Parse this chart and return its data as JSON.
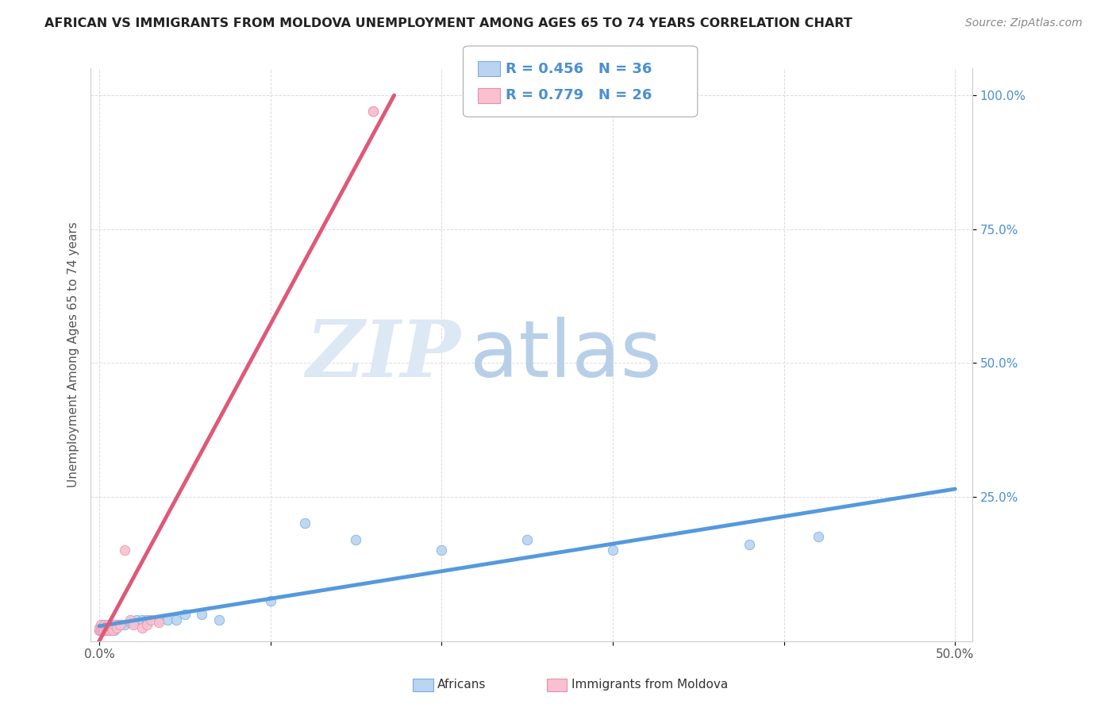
{
  "title": "AFRICAN VS IMMIGRANTS FROM MOLDOVA UNEMPLOYMENT AMONG AGES 65 TO 74 YEARS CORRELATION CHART",
  "source": "Source: ZipAtlas.com",
  "ylabel": "Unemployment Among Ages 65 to 74 years",
  "xlim": [
    -0.005,
    0.51
  ],
  "ylim": [
    -0.02,
    1.05
  ],
  "xticks": [
    0.0,
    0.1,
    0.2,
    0.3,
    0.4,
    0.5
  ],
  "yticks": [
    0.25,
    0.5,
    0.75,
    1.0
  ],
  "xtick_labels": [
    "0.0%",
    "",
    "",
    "",
    "",
    "50.0%"
  ],
  "ytick_labels": [
    "25.0%",
    "50.0%",
    "75.0%",
    "100.0%"
  ],
  "africans_x": [
    0.0,
    0.001,
    0.001,
    0.002,
    0.002,
    0.003,
    0.003,
    0.004,
    0.005,
    0.005,
    0.006,
    0.007,
    0.008,
    0.009,
    0.01,
    0.012,
    0.015,
    0.018,
    0.02,
    0.022,
    0.025,
    0.028,
    0.035,
    0.04,
    0.045,
    0.05,
    0.06,
    0.07,
    0.1,
    0.12,
    0.15,
    0.2,
    0.25,
    0.3,
    0.38,
    0.42
  ],
  "africans_y": [
    0.0,
    0.0,
    0.005,
    0.0,
    0.01,
    0.0,
    0.005,
    0.0,
    0.008,
    0.0,
    0.01,
    0.0,
    0.005,
    0.0,
    0.01,
    0.01,
    0.01,
    0.015,
    0.015,
    0.02,
    0.02,
    0.02,
    0.02,
    0.02,
    0.02,
    0.03,
    0.03,
    0.02,
    0.055,
    0.2,
    0.17,
    0.15,
    0.17,
    0.15,
    0.16,
    0.175
  ],
  "moldova_x": [
    0.0,
    0.0,
    0.001,
    0.001,
    0.002,
    0.002,
    0.003,
    0.003,
    0.004,
    0.005,
    0.005,
    0.006,
    0.007,
    0.008,
    0.009,
    0.01,
    0.012,
    0.015,
    0.018,
    0.02,
    0.025,
    0.028,
    0.03,
    0.035,
    0.16,
    0.16
  ],
  "moldova_y": [
    0.0,
    0.005,
    0.0,
    0.01,
    0.0,
    0.005,
    0.0,
    0.01,
    0.0,
    0.005,
    0.01,
    0.0,
    0.005,
    0.0,
    0.01,
    0.005,
    0.01,
    0.15,
    0.02,
    0.01,
    0.005,
    0.01,
    0.02,
    0.015,
    0.97,
    0.97
  ],
  "africans_color": "#b8d4f0",
  "africans_edge_color": "#7aaae0",
  "moldova_color": "#f8c0d0",
  "moldova_edge_color": "#e890a8",
  "line_african_color": "#5599dd",
  "line_moldova_color": "#e05878",
  "R_african": 0.456,
  "N_african": 36,
  "R_moldova": 0.779,
  "N_moldova": 26,
  "watermark_zip": "ZIP",
  "watermark_atlas": "atlas",
  "watermark_zip_color": "#dce8f4",
  "watermark_atlas_color": "#b8cfe8",
  "background_color": "#ffffff",
  "grid_color": "#cccccc",
  "marker_size": 80,
  "legend_text_color": "#4a8fd4"
}
